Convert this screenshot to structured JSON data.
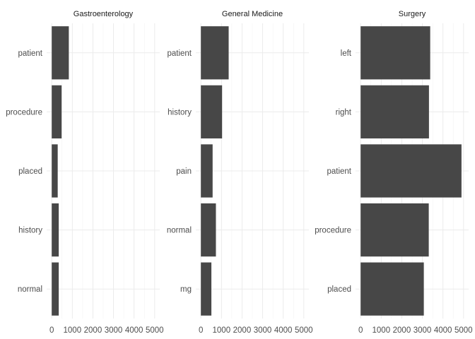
{
  "chart_data": {
    "type": "bar",
    "orientation": "horizontal",
    "theme": "minimal",
    "grid": true,
    "bar_color": "#474747",
    "xlim": [
      0,
      5000
    ],
    "x_ticks": [
      0,
      1000,
      2000,
      3000,
      4000,
      5000
    ],
    "x_tick_labels": [
      "0",
      "1000",
      "2000",
      "3000",
      "4000",
      "5000"
    ],
    "panels": [
      {
        "title": "Gastroenterology",
        "categories": [
          "patient",
          "procedure",
          "placed",
          "history",
          "normal"
        ],
        "values": [
          830,
          480,
          290,
          340,
          340
        ]
      },
      {
        "title": "General Medicine",
        "categories": [
          "patient",
          "history",
          "pain",
          "normal",
          "mg"
        ],
        "values": [
          1350,
          1030,
          570,
          730,
          510
        ]
      },
      {
        "title": "Surgery",
        "categories": [
          "left",
          "right",
          "patient",
          "procedure",
          "placed"
        ],
        "values": [
          3380,
          3320,
          4900,
          3310,
          3070
        ]
      }
    ]
  }
}
